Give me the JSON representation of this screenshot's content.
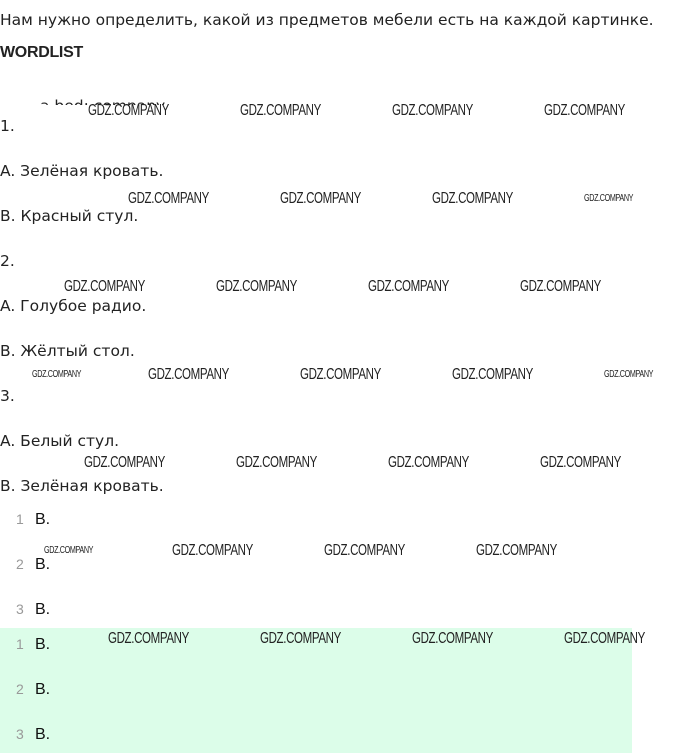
{
  "intro": "Нам нужно определить, какой из предметов мебели есть на каждой картинке.",
  "heading": "WORDLIST",
  "hidden_line": "a bed: company",
  "questions": [
    {
      "num": "1.",
      "a": "A. Зелёная кровать.",
      "b": "B. Красный стул."
    },
    {
      "num": "2.",
      "a": "A. Голубое радио.",
      "b": "B. Жёлтый стол."
    },
    {
      "num": "3.",
      "a": "A. Белый стул.",
      "b": "B. Зелёная кровать."
    }
  ],
  "answers": [
    {
      "n": "1",
      "v": "B."
    },
    {
      "n": "2",
      "v": "B."
    },
    {
      "n": "3",
      "v": "B."
    }
  ],
  "answers_highlighted": [
    {
      "n": "1",
      "v": "B."
    },
    {
      "n": "2",
      "v": "B."
    },
    {
      "n": "3",
      "v": "B."
    }
  ],
  "watermark": "GDZ.COMPANY",
  "colors": {
    "highlight": "#dcfde9"
  }
}
